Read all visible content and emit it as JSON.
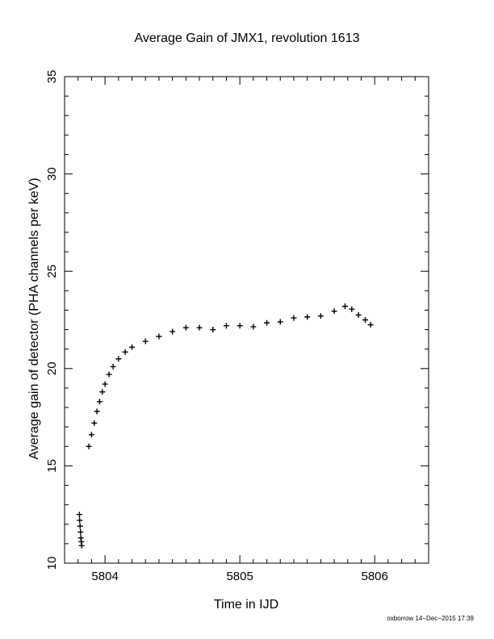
{
  "chart_data": {
    "type": "scatter",
    "title": "Average Gain of JMX1, revolution 1613",
    "xlabel": "Time in IJD",
    "ylabel": "Average gain of detector (PHA channels per keV)",
    "xlim": [
      5803.7,
      5806.4
    ],
    "ylim": [
      10,
      35
    ],
    "xticks": [
      5804,
      5805,
      5806
    ],
    "xtick_labels": [
      "5804",
      "5805",
      "5806"
    ],
    "yticks": [
      10,
      15,
      20,
      25,
      30,
      35
    ],
    "ytick_labels": [
      "10",
      "15",
      "20",
      "25",
      "30",
      "35"
    ],
    "marker": "+",
    "grid": false,
    "series": [
      {
        "points": [
          [
            5803.81,
            12.5
          ],
          [
            5803.812,
            12.2
          ],
          [
            5803.815,
            11.9
          ],
          [
            5803.818,
            11.6
          ],
          [
            5803.821,
            11.3
          ],
          [
            5803.824,
            11.1
          ],
          [
            5803.827,
            10.9
          ],
          [
            5803.88,
            16.0
          ],
          [
            5803.9,
            16.6
          ],
          [
            5803.92,
            17.2
          ],
          [
            5803.94,
            17.8
          ],
          [
            5803.96,
            18.3
          ],
          [
            5803.98,
            18.8
          ],
          [
            5804.0,
            19.2
          ],
          [
            5804.03,
            19.7
          ],
          [
            5804.06,
            20.1
          ],
          [
            5804.1,
            20.5
          ],
          [
            5804.15,
            20.85
          ],
          [
            5804.2,
            21.1
          ],
          [
            5804.3,
            21.4
          ],
          [
            5804.4,
            21.65
          ],
          [
            5804.5,
            21.9
          ],
          [
            5804.6,
            22.1
          ],
          [
            5804.7,
            22.1
          ],
          [
            5804.8,
            22.0
          ],
          [
            5804.9,
            22.2
          ],
          [
            5805.0,
            22.2
          ],
          [
            5805.1,
            22.15
          ],
          [
            5805.2,
            22.35
          ],
          [
            5805.3,
            22.4
          ],
          [
            5805.4,
            22.6
          ],
          [
            5805.5,
            22.65
          ],
          [
            5805.6,
            22.7
          ],
          [
            5805.7,
            22.95
          ],
          [
            5805.78,
            23.2
          ],
          [
            5805.83,
            23.05
          ],
          [
            5805.88,
            22.75
          ],
          [
            5805.93,
            22.5
          ],
          [
            5805.97,
            22.25
          ]
        ]
      }
    ],
    "footer": "oxborrow 14−Dec−2015 17:39"
  }
}
